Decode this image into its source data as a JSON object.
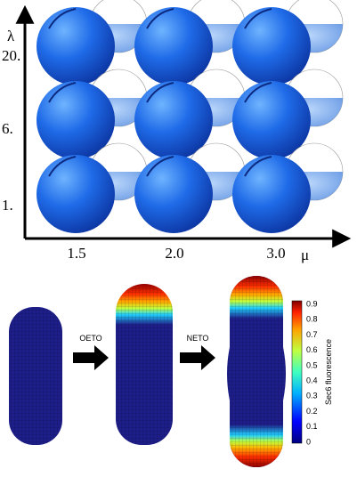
{
  "axes": {
    "y_label": "λ",
    "x_label": "μ",
    "y_ticks": [
      "20.",
      "6.",
      "1."
    ],
    "x_ticks": [
      "1.5",
      "2.0",
      "3.0"
    ]
  },
  "arrows": [
    "OETO",
    "NETO"
  ],
  "colorbar": {
    "label": "Sec6 fluorescence",
    "ticks": [
      "0",
      "0.1",
      "0.2",
      "0.3",
      "0.4",
      "0.5",
      "0.6",
      "0.7",
      "0.8",
      "0.9"
    ]
  }
}
